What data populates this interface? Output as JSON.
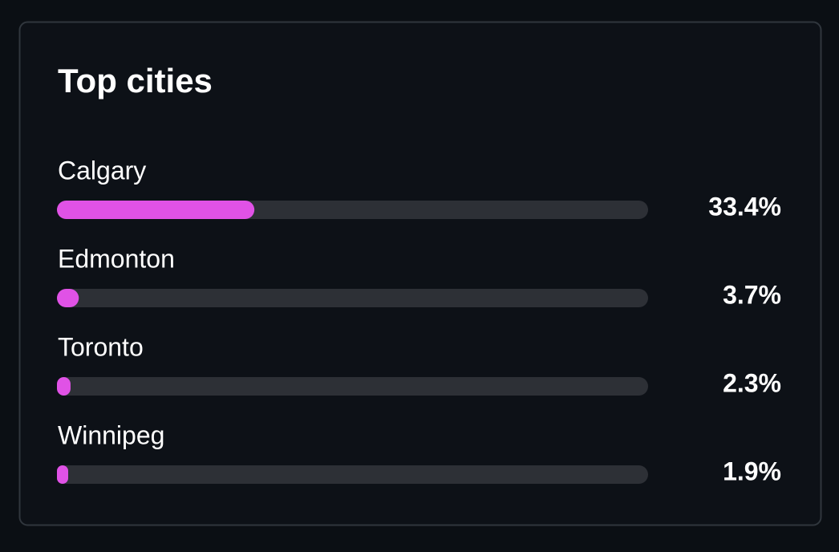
{
  "chart_data": {
    "type": "bar",
    "orientation": "horizontal",
    "title": "Top cities",
    "categories": [
      "Calgary",
      "Edmonton",
      "Toronto",
      "Winnipeg"
    ],
    "values": [
      33.4,
      3.7,
      2.3,
      1.9
    ],
    "value_labels": [
      "33.4%",
      "3.7%",
      "2.3%",
      "1.9%"
    ],
    "color": "#e052e6",
    "xlim": [
      0,
      100
    ]
  }
}
